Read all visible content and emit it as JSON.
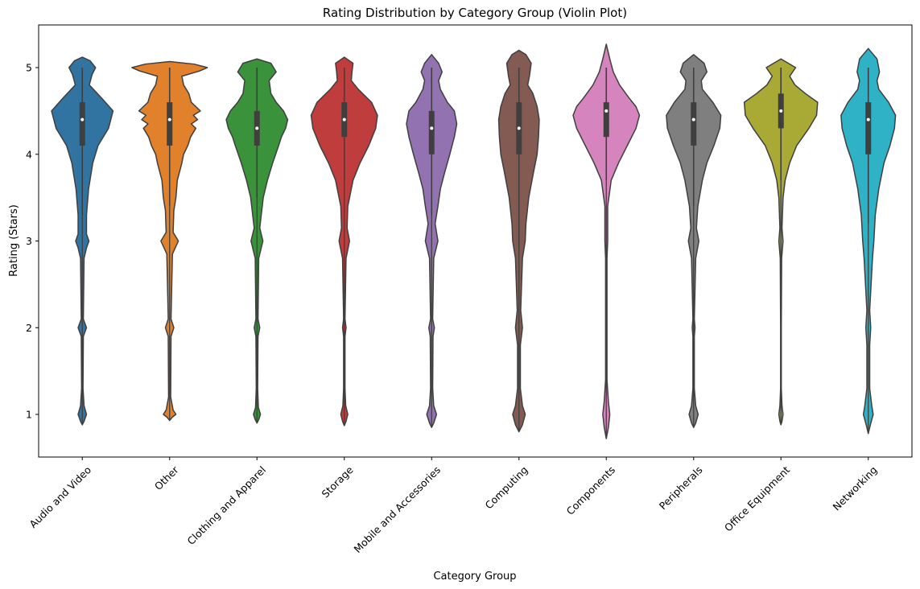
{
  "chart_data": {
    "type": "violin",
    "title": "Rating Distribution by Category Group (Violin Plot)",
    "xlabel": "Category Group",
    "ylabel": "Rating (Stars)",
    "ylim": [
      0.5,
      5.5
    ],
    "yticks": [
      1,
      2,
      3,
      4,
      5
    ],
    "grid": false,
    "legend": "none",
    "categories": [
      "Audio and Video",
      "Other",
      "Clothing and Apparel",
      "Storage",
      "Mobile and Accessories",
      "Computing",
      "Components",
      "Peripherals",
      "Office Equipment",
      "Networking"
    ],
    "series": [
      {
        "color": "#3274a1",
        "min": 0.88,
        "max": 5.12,
        "q1": 4.1,
        "median": 4.4,
        "q3": 4.6,
        "whisker_low": 3.3,
        "whisker_high": 5.0,
        "profile": [
          [
            0.88,
            0.0
          ],
          [
            0.92,
            0.05
          ],
          [
            1.0,
            0.12
          ],
          [
            1.1,
            0.05
          ],
          [
            1.3,
            0.02
          ],
          [
            1.9,
            0.03
          ],
          [
            2.0,
            0.12
          ],
          [
            2.1,
            0.03
          ],
          [
            2.8,
            0.05
          ],
          [
            2.92,
            0.12
          ],
          [
            3.0,
            0.19
          ],
          [
            3.08,
            0.12
          ],
          [
            3.3,
            0.12
          ],
          [
            3.6,
            0.18
          ],
          [
            3.9,
            0.3
          ],
          [
            4.1,
            0.45
          ],
          [
            4.3,
            0.75
          ],
          [
            4.5,
            0.88
          ],
          [
            4.65,
            0.55
          ],
          [
            4.8,
            0.2
          ],
          [
            4.92,
            0.28
          ],
          [
            5.0,
            0.38
          ],
          [
            5.08,
            0.22
          ],
          [
            5.12,
            0.0
          ]
        ]
      },
      {
        "color": "#e1812c",
        "min": 0.93,
        "max": 5.07,
        "q1": 4.1,
        "median": 4.4,
        "q3": 4.6,
        "whisker_low": 3.4,
        "whisker_high": 5.0,
        "profile": [
          [
            0.93,
            0.0
          ],
          [
            0.97,
            0.08
          ],
          [
            1.0,
            0.18
          ],
          [
            1.05,
            0.1
          ],
          [
            1.2,
            0.03
          ],
          [
            1.9,
            0.04
          ],
          [
            2.0,
            0.12
          ],
          [
            2.1,
            0.04
          ],
          [
            2.85,
            0.08
          ],
          [
            3.0,
            0.25
          ],
          [
            3.1,
            0.1
          ],
          [
            3.35,
            0.12
          ],
          [
            3.5,
            0.18
          ],
          [
            3.7,
            0.22
          ],
          [
            3.9,
            0.35
          ],
          [
            4.0,
            0.4
          ],
          [
            4.1,
            0.52
          ],
          [
            4.2,
            0.6
          ],
          [
            4.3,
            0.75
          ],
          [
            4.35,
            0.62
          ],
          [
            4.4,
            0.8
          ],
          [
            4.45,
            0.68
          ],
          [
            4.5,
            0.88
          ],
          [
            4.6,
            0.62
          ],
          [
            4.7,
            0.55
          ],
          [
            4.8,
            0.4
          ],
          [
            4.9,
            0.35
          ],
          [
            4.96,
            0.85
          ],
          [
            5.0,
            1.08
          ],
          [
            5.04,
            0.7
          ],
          [
            5.07,
            0.0
          ]
        ]
      },
      {
        "color": "#3a923a",
        "min": 0.9,
        "max": 5.1,
        "q1": 4.1,
        "median": 4.3,
        "q3": 4.5,
        "whisker_low": 3.5,
        "whisker_high": 5.0,
        "profile": [
          [
            0.9,
            0.0
          ],
          [
            0.94,
            0.05
          ],
          [
            1.0,
            0.1
          ],
          [
            1.08,
            0.04
          ],
          [
            1.3,
            0.02
          ],
          [
            1.9,
            0.03
          ],
          [
            2.0,
            0.08
          ],
          [
            2.1,
            0.03
          ],
          [
            2.8,
            0.05
          ],
          [
            3.0,
            0.17
          ],
          [
            3.15,
            0.08
          ],
          [
            3.5,
            0.18
          ],
          [
            3.7,
            0.3
          ],
          [
            3.9,
            0.45
          ],
          [
            4.1,
            0.62
          ],
          [
            4.2,
            0.7
          ],
          [
            4.3,
            0.82
          ],
          [
            4.4,
            0.88
          ],
          [
            4.5,
            0.76
          ],
          [
            4.6,
            0.55
          ],
          [
            4.7,
            0.4
          ],
          [
            4.85,
            0.35
          ],
          [
            4.95,
            0.55
          ],
          [
            5.05,
            0.4
          ],
          [
            5.1,
            0.0
          ]
        ]
      },
      {
        "color": "#c03d3e",
        "min": 0.87,
        "max": 5.12,
        "q1": 4.2,
        "median": 4.4,
        "q3": 4.6,
        "whisker_low": 3.7,
        "whisker_high": 5.0,
        "profile": [
          [
            0.87,
            0.0
          ],
          [
            0.92,
            0.05
          ],
          [
            1.0,
            0.1
          ],
          [
            1.1,
            0.04
          ],
          [
            1.3,
            0.02
          ],
          [
            1.9,
            0.02
          ],
          [
            2.0,
            0.05
          ],
          [
            2.1,
            0.02
          ],
          [
            2.8,
            0.05
          ],
          [
            3.0,
            0.15
          ],
          [
            3.15,
            0.08
          ],
          [
            3.4,
            0.1
          ],
          [
            3.7,
            0.25
          ],
          [
            3.9,
            0.45
          ],
          [
            4.1,
            0.7
          ],
          [
            4.3,
            0.9
          ],
          [
            4.45,
            0.95
          ],
          [
            4.6,
            0.78
          ],
          [
            4.75,
            0.4
          ],
          [
            4.85,
            0.2
          ],
          [
            4.95,
            0.22
          ],
          [
            5.05,
            0.25
          ],
          [
            5.12,
            0.0
          ]
        ]
      },
      {
        "color": "#9372b2",
        "min": 0.85,
        "max": 5.15,
        "q1": 4.0,
        "median": 4.3,
        "q3": 4.5,
        "whisker_low": 3.3,
        "whisker_high": 5.0,
        "profile": [
          [
            0.85,
            0.0
          ],
          [
            0.9,
            0.06
          ],
          [
            1.0,
            0.14
          ],
          [
            1.1,
            0.06
          ],
          [
            1.3,
            0.03
          ],
          [
            1.9,
            0.04
          ],
          [
            2.0,
            0.08
          ],
          [
            2.1,
            0.03
          ],
          [
            2.8,
            0.06
          ],
          [
            3.0,
            0.18
          ],
          [
            3.2,
            0.1
          ],
          [
            3.4,
            0.18
          ],
          [
            3.6,
            0.25
          ],
          [
            3.8,
            0.38
          ],
          [
            4.0,
            0.52
          ],
          [
            4.2,
            0.65
          ],
          [
            4.35,
            0.72
          ],
          [
            4.5,
            0.65
          ],
          [
            4.6,
            0.45
          ],
          [
            4.75,
            0.25
          ],
          [
            4.85,
            0.2
          ],
          [
            4.95,
            0.3
          ],
          [
            5.05,
            0.2
          ],
          [
            5.15,
            0.0
          ]
        ]
      },
      {
        "color": "#845b53",
        "min": 0.8,
        "max": 5.2,
        "q1": 4.0,
        "median": 4.3,
        "q3": 4.6,
        "whisker_low": 2.9,
        "whisker_high": 5.0,
        "profile": [
          [
            0.8,
            0.0
          ],
          [
            0.88,
            0.1
          ],
          [
            1.0,
            0.18
          ],
          [
            1.1,
            0.1
          ],
          [
            1.3,
            0.04
          ],
          [
            1.8,
            0.04
          ],
          [
            2.0,
            0.1
          ],
          [
            2.2,
            0.05
          ],
          [
            2.8,
            0.1
          ],
          [
            3.0,
            0.18
          ],
          [
            3.2,
            0.2
          ],
          [
            3.5,
            0.28
          ],
          [
            3.8,
            0.42
          ],
          [
            4.0,
            0.52
          ],
          [
            4.2,
            0.56
          ],
          [
            4.4,
            0.58
          ],
          [
            4.55,
            0.52
          ],
          [
            4.7,
            0.4
          ],
          [
            4.8,
            0.25
          ],
          [
            4.9,
            0.3
          ],
          [
            5.05,
            0.35
          ],
          [
            5.15,
            0.2
          ],
          [
            5.2,
            0.0
          ]
        ]
      },
      {
        "color": "#d684bd",
        "min": 0.72,
        "max": 5.27,
        "q1": 4.2,
        "median": 4.5,
        "q3": 4.6,
        "whisker_low": 3.7,
        "whisker_high": 5.0,
        "profile": [
          [
            0.72,
            0.0
          ],
          [
            0.85,
            0.06
          ],
          [
            1.0,
            0.1
          ],
          [
            1.15,
            0.06
          ],
          [
            1.4,
            0.02
          ],
          [
            2.0,
            0.02
          ],
          [
            2.8,
            0.02
          ],
          [
            3.0,
            0.04
          ],
          [
            3.4,
            0.04
          ],
          [
            3.7,
            0.14
          ],
          [
            3.9,
            0.35
          ],
          [
            4.1,
            0.6
          ],
          [
            4.3,
            0.85
          ],
          [
            4.45,
            0.95
          ],
          [
            4.55,
            0.85
          ],
          [
            4.65,
            0.65
          ],
          [
            4.8,
            0.38
          ],
          [
            4.95,
            0.2
          ],
          [
            5.1,
            0.1
          ],
          [
            5.27,
            0.0
          ]
        ]
      },
      {
        "color": "#7f7f7f",
        "min": 0.85,
        "max": 5.15,
        "q1": 4.1,
        "median": 4.4,
        "q3": 4.6,
        "whisker_low": 3.4,
        "whisker_high": 5.0,
        "profile": [
          [
            0.85,
            0.0
          ],
          [
            0.9,
            0.06
          ],
          [
            1.0,
            0.13
          ],
          [
            1.1,
            0.06
          ],
          [
            1.3,
            0.02
          ],
          [
            1.9,
            0.02
          ],
          [
            2.0,
            0.04
          ],
          [
            2.1,
            0.02
          ],
          [
            2.8,
            0.06
          ],
          [
            3.0,
            0.15
          ],
          [
            3.15,
            0.08
          ],
          [
            3.4,
            0.12
          ],
          [
            3.7,
            0.25
          ],
          [
            3.9,
            0.38
          ],
          [
            4.1,
            0.58
          ],
          [
            4.3,
            0.75
          ],
          [
            4.45,
            0.78
          ],
          [
            4.6,
            0.55
          ],
          [
            4.75,
            0.25
          ],
          [
            4.85,
            0.22
          ],
          [
            4.95,
            0.38
          ],
          [
            5.05,
            0.3
          ],
          [
            5.15,
            0.0
          ]
        ]
      },
      {
        "color": "#a9aa35",
        "min": 0.88,
        "max": 5.1,
        "q1": 4.3,
        "median": 4.5,
        "q3": 4.7,
        "whisker_low": 3.7,
        "whisker_high": 5.0,
        "profile": [
          [
            0.88,
            0.0
          ],
          [
            0.92,
            0.03
          ],
          [
            1.0,
            0.06
          ],
          [
            1.1,
            0.03
          ],
          [
            1.3,
            0.01
          ],
          [
            2.0,
            0.01
          ],
          [
            2.8,
            0.02
          ],
          [
            3.0,
            0.06
          ],
          [
            3.15,
            0.03
          ],
          [
            3.5,
            0.06
          ],
          [
            3.7,
            0.12
          ],
          [
            3.9,
            0.25
          ],
          [
            4.1,
            0.45
          ],
          [
            4.3,
            0.8
          ],
          [
            4.45,
            1.02
          ],
          [
            4.6,
            1.05
          ],
          [
            4.7,
            0.7
          ],
          [
            4.8,
            0.4
          ],
          [
            4.9,
            0.25
          ],
          [
            5.0,
            0.42
          ],
          [
            5.1,
            0.0
          ]
        ]
      },
      {
        "color": "#2fb2c6",
        "min": 0.78,
        "max": 5.22,
        "q1": 4.0,
        "median": 4.4,
        "q3": 4.6,
        "whisker_low": 3.2,
        "whisker_high": 5.0,
        "profile": [
          [
            0.78,
            0.0
          ],
          [
            0.88,
            0.06
          ],
          [
            1.0,
            0.14
          ],
          [
            1.1,
            0.1
          ],
          [
            1.3,
            0.04
          ],
          [
            1.8,
            0.04
          ],
          [
            2.0,
            0.07
          ],
          [
            2.2,
            0.04
          ],
          [
            2.8,
            0.12
          ],
          [
            3.0,
            0.16
          ],
          [
            3.3,
            0.2
          ],
          [
            3.6,
            0.3
          ],
          [
            3.9,
            0.45
          ],
          [
            4.1,
            0.62
          ],
          [
            4.3,
            0.75
          ],
          [
            4.45,
            0.78
          ],
          [
            4.6,
            0.58
          ],
          [
            4.75,
            0.3
          ],
          [
            4.85,
            0.25
          ],
          [
            4.95,
            0.32
          ],
          [
            5.1,
            0.25
          ],
          [
            5.22,
            0.0
          ]
        ]
      }
    ]
  }
}
